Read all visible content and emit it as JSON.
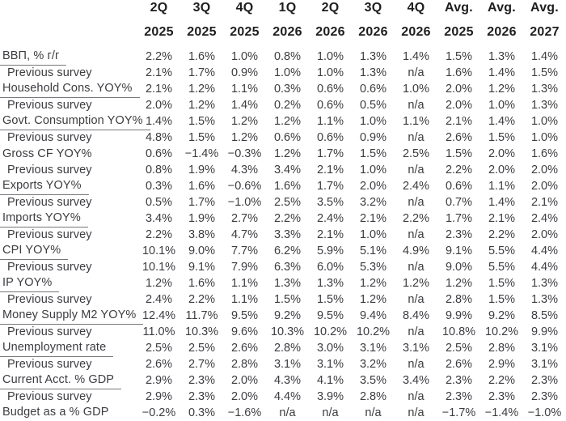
{
  "table": {
    "columns": [
      {
        "quarter": "2Q",
        "year": "2025"
      },
      {
        "quarter": "3Q",
        "year": "2025"
      },
      {
        "quarter": "4Q",
        "year": "2025"
      },
      {
        "quarter": "1Q",
        "year": "2026"
      },
      {
        "quarter": "2Q",
        "year": "2026"
      },
      {
        "quarter": "3Q",
        "year": "2026"
      },
      {
        "quarter": "4Q",
        "year": "2026"
      },
      {
        "quarter": "Avg.",
        "year": "2025"
      },
      {
        "quarter": "Avg.",
        "year": "2026"
      },
      {
        "quarter": "Avg.",
        "year": "2027"
      }
    ],
    "rows": [
      {
        "label": "ВВП, % г/г",
        "type": "category",
        "underline": true,
        "values": [
          "2.2%",
          "1.6%",
          "1.0%",
          "0.8%",
          "1.0%",
          "1.3%",
          "1.4%",
          "1.5%",
          "1.3%",
          "1.4%"
        ]
      },
      {
        "label": "Previous survey",
        "type": "previous",
        "underline": false,
        "values": [
          "2.1%",
          "1.7%",
          "0.9%",
          "1.0%",
          "1.0%",
          "1.3%",
          "n/a",
          "1.6%",
          "1.4%",
          "1.5%"
        ]
      },
      {
        "label": "Household Cons. YOY%",
        "type": "category",
        "underline": true,
        "values": [
          "2.1%",
          "1.2%",
          "1.1%",
          "0.3%",
          "0.6%",
          "0.6%",
          "1.0%",
          "2.0%",
          "1.2%",
          "1.3%"
        ]
      },
      {
        "label": "Previous survey",
        "type": "previous",
        "underline": false,
        "values": [
          "2.0%",
          "1.2%",
          "1.4%",
          "0.2%",
          "0.6%",
          "0.5%",
          "n/a",
          "2.0%",
          "1.0%",
          "1.3%"
        ]
      },
      {
        "label": "Govt. Consumption YOY%",
        "type": "category",
        "underline": true,
        "values": [
          "1.4%",
          "1.5%",
          "1.2%",
          "1.2%",
          "1.1%",
          "1.0%",
          "1.1%",
          "2.1%",
          "1.4%",
          "1.0%"
        ]
      },
      {
        "label": "Previous survey",
        "type": "previous",
        "underline": false,
        "values": [
          "4.8%",
          "1.5%",
          "1.2%",
          "0.6%",
          "0.6%",
          "0.9%",
          "n/a",
          "2.6%",
          "1.5%",
          "1.0%"
        ]
      },
      {
        "label": "Gross CF YOY%",
        "type": "category",
        "underline": false,
        "values": [
          "0.6%",
          "−1.4%",
          "−0.3%",
          "1.2%",
          "1.7%",
          "1.5%",
          "2.5%",
          "1.5%",
          "2.0%",
          "1.6%"
        ]
      },
      {
        "label": "Previous survey",
        "type": "previous",
        "underline": false,
        "values": [
          "0.8%",
          "1.9%",
          "4.3%",
          "3.4%",
          "2.1%",
          "1.0%",
          "n/a",
          "2.2%",
          "2.0%",
          "2.0%"
        ]
      },
      {
        "label": "Exports YOY%",
        "type": "category",
        "underline": true,
        "values": [
          "0.3%",
          "1.6%",
          "−0.6%",
          "1.6%",
          "1.7%",
          "2.0%",
          "2.4%",
          "0.6%",
          "1.1%",
          "2.0%"
        ]
      },
      {
        "label": "Previous survey",
        "type": "previous",
        "underline": false,
        "values": [
          "0.5%",
          "1.7%",
          "−1.0%",
          "2.5%",
          "3.5%",
          "3.2%",
          "n/a",
          "0.7%",
          "1.4%",
          "2.1%"
        ]
      },
      {
        "label": "Imports YOY%",
        "type": "category",
        "underline": true,
        "values": [
          "3.4%",
          "1.9%",
          "2.7%",
          "2.2%",
          "2.4%",
          "2.1%",
          "2.2%",
          "1.7%",
          "2.1%",
          "2.4%"
        ]
      },
      {
        "label": "Previous survey",
        "type": "previous",
        "underline": false,
        "values": [
          "2.2%",
          "3.8%",
          "4.7%",
          "3.3%",
          "2.1%",
          "1.0%",
          "n/a",
          "2.3%",
          "2.2%",
          "2.0%"
        ]
      },
      {
        "label": "CPI YOY%",
        "type": "category",
        "underline": true,
        "values": [
          "10.1%",
          "9.0%",
          "7.7%",
          "6.2%",
          "5.9%",
          "5.1%",
          "4.9%",
          "9.1%",
          "5.5%",
          "4.4%"
        ]
      },
      {
        "label": "Previous survey",
        "type": "previous",
        "underline": false,
        "values": [
          "10.1%",
          "9.1%",
          "7.9%",
          "6.3%",
          "6.0%",
          "5.3%",
          "n/a",
          "9.0%",
          "5.5%",
          "4.4%"
        ]
      },
      {
        "label": "IP YOY%",
        "type": "category",
        "underline": true,
        "values": [
          "1.2%",
          "1.6%",
          "1.1%",
          "1.3%",
          "1.3%",
          "1.2%",
          "1.2%",
          "1.2%",
          "1.5%",
          "1.3%"
        ]
      },
      {
        "label": "Previous survey",
        "type": "previous",
        "underline": false,
        "values": [
          "2.4%",
          "2.2%",
          "1.1%",
          "1.5%",
          "1.5%",
          "1.2%",
          "n/a",
          "2.8%",
          "1.5%",
          "1.3%"
        ]
      },
      {
        "label": "Money Supply M2 YOY%",
        "type": "category",
        "underline": true,
        "values": [
          "12.4%",
          "11.7%",
          "9.5%",
          "9.2%",
          "9.5%",
          "9.4%",
          "8.4%",
          "9.9%",
          "9.2%",
          "8.5%"
        ]
      },
      {
        "label": "Previous survey",
        "type": "previous",
        "underline": false,
        "values": [
          "11.0%",
          "10.3%",
          "9.6%",
          "10.3%",
          "10.2%",
          "10.2%",
          "n/a",
          "10.8%",
          "10.2%",
          "9.9%"
        ]
      },
      {
        "label": "Unemployment rate",
        "type": "category",
        "underline": true,
        "values": [
          "2.5%",
          "2.5%",
          "2.6%",
          "2.8%",
          "3.0%",
          "3.1%",
          "3.1%",
          "2.5%",
          "2.8%",
          "3.1%"
        ]
      },
      {
        "label": "Previous survey",
        "type": "previous",
        "underline": false,
        "values": [
          "2.6%",
          "2.7%",
          "2.8%",
          "3.1%",
          "3.1%",
          "3.2%",
          "n/a",
          "2.6%",
          "2.9%",
          "3.1%"
        ]
      },
      {
        "label": "Current Acct. % GDP",
        "type": "category",
        "underline": true,
        "values": [
          "2.9%",
          "2.3%",
          "2.0%",
          "4.3%",
          "4.1%",
          "3.5%",
          "3.4%",
          "2.3%",
          "2.2%",
          "2.3%"
        ]
      },
      {
        "label": "Previous survey",
        "type": "previous",
        "underline": false,
        "values": [
          "2.9%",
          "2.3%",
          "2.0%",
          "4.4%",
          "3.9%",
          "2.8%",
          "n/a",
          "2.3%",
          "2.3%",
          "2.3%"
        ]
      },
      {
        "label": "Budget as a % GDP",
        "type": "category",
        "underline": true,
        "values": [
          "−0.2%",
          "0.3%",
          "−1.6%",
          "n/a",
          "n/a",
          "n/a",
          "n/a",
          "−1.7%",
          "−1.4%",
          "−1.0%"
        ]
      }
    ]
  },
  "colors": {
    "header_text": "#1e1e21",
    "body_text": "#3c3c41",
    "underline": "#77777c",
    "background": "#ffffff"
  }
}
